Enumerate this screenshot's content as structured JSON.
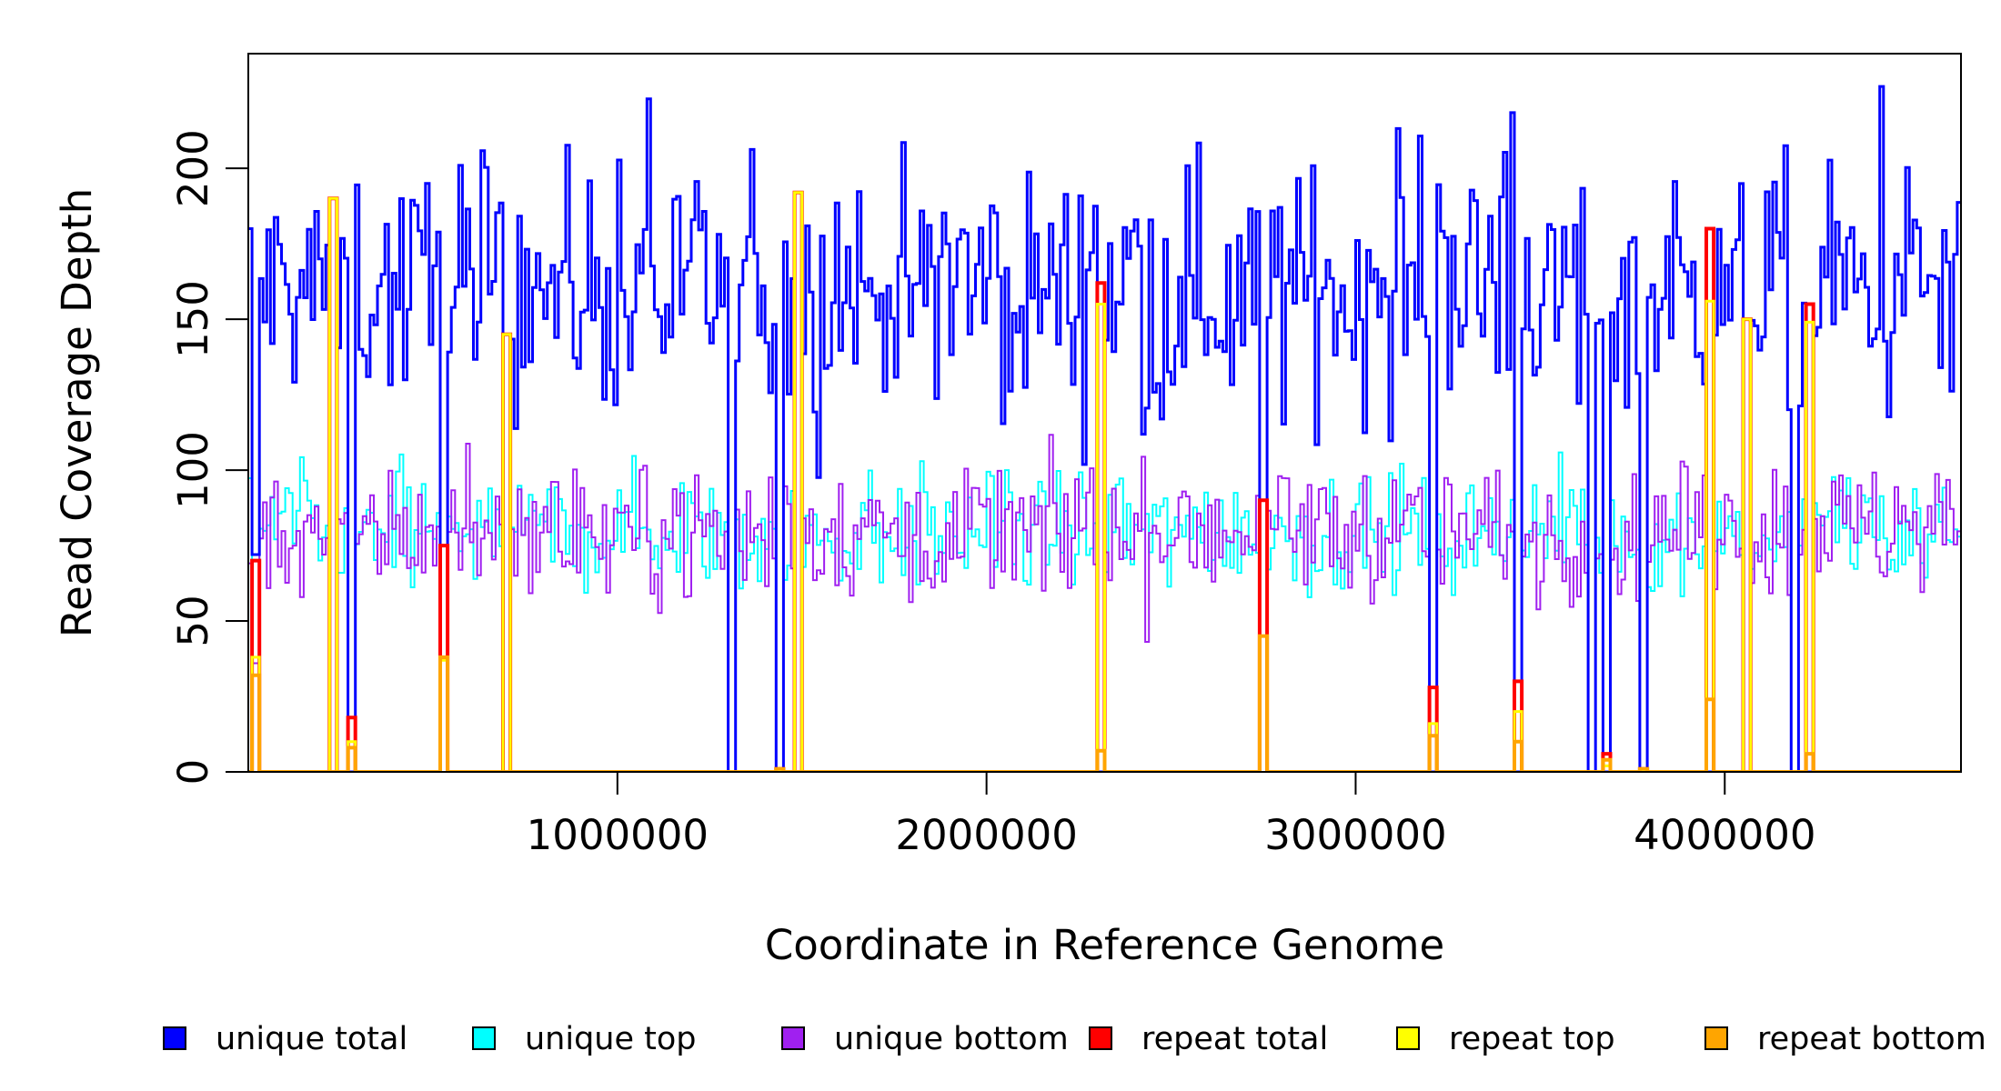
{
  "chart_data": {
    "type": "line",
    "title": "",
    "xlabel": "Coordinate in Reference Genome",
    "ylabel": "Read Coverage Depth",
    "xlim": [
      0,
      4640000
    ],
    "ylim": [
      0,
      238
    ],
    "x_ticks": [
      1000000,
      2000000,
      3000000,
      4000000
    ],
    "x_tick_labels": [
      "1000000",
      "2000000",
      "3000000",
      "4000000"
    ],
    "y_ticks": [
      0,
      50,
      100,
      150,
      200
    ],
    "y_tick_labels": [
      "0",
      "50",
      "100",
      "150",
      "200"
    ],
    "grid": false,
    "legend_position": "bottom",
    "bin_size": 10000,
    "series": [
      {
        "name": "unique total",
        "color": "#0000FF",
        "mean": 160,
        "spread": 20
      },
      {
        "name": "unique top",
        "color": "#00FFFF",
        "mean": 80,
        "spread": 10
      },
      {
        "name": "unique bottom",
        "color": "#A020F0",
        "mean": 80,
        "spread": 11
      },
      {
        "name": "repeat total",
        "color": "#FF0000",
        "mean": 0,
        "spread": 0
      },
      {
        "name": "repeat top",
        "color": "#FFFF00",
        "mean": 0,
        "spread": 0
      },
      {
        "name": "repeat bottom",
        "color": "#FFA500",
        "mean": 0,
        "spread": 0
      }
    ],
    "dips": [
      {
        "x": 10000,
        "unique_total": 72,
        "repeat_total": 70,
        "repeat_bottom": 32
      },
      {
        "x": 220000,
        "unique_total": 0,
        "repeat_total": 190,
        "repeat_bottom": 0
      },
      {
        "x": 265000,
        "unique_total": 0,
        "repeat_total": 18,
        "repeat_bottom": 8
      },
      {
        "x": 520000,
        "unique_total": 75,
        "repeat_total": 75,
        "repeat_bottom": 38
      },
      {
        "x": 685000,
        "unique_total": 0,
        "repeat_total": 145,
        "repeat_bottom": 0
      },
      {
        "x": 1300000,
        "unique_total": 0,
        "repeat_total": 0,
        "repeat_bottom": 0
      },
      {
        "x": 1425000,
        "unique_total": 0,
        "repeat_total": 1,
        "repeat_bottom": 1
      },
      {
        "x": 1475000,
        "unique_total": 0,
        "repeat_total": 192,
        "repeat_bottom": 0
      },
      {
        "x": 2295000,
        "unique_total": 0,
        "repeat_total": 162,
        "repeat_bottom": 7
      },
      {
        "x": 2735000,
        "unique_total": 90,
        "repeat_total": 90,
        "repeat_bottom": 45
      },
      {
        "x": 3195000,
        "unique_total": 0,
        "repeat_total": 28,
        "repeat_bottom": 12
      },
      {
        "x": 3425000,
        "unique_total": 0,
        "repeat_total": 30,
        "repeat_bottom": 10
      },
      {
        "x": 3625000,
        "unique_total": 0,
        "repeat_total": 0,
        "repeat_bottom": 0
      },
      {
        "x": 3665000,
        "unique_total": 0,
        "repeat_total": 6,
        "repeat_bottom": 4
      },
      {
        "x": 3770000,
        "unique_total": 0,
        "repeat_total": 1,
        "repeat_bottom": 1
      },
      {
        "x": 3945000,
        "unique_total": 0,
        "repeat_total": 180,
        "repeat_bottom": 24
      },
      {
        "x": 4045000,
        "unique_total": 0,
        "repeat_total": 150,
        "repeat_bottom": 0
      },
      {
        "x": 4175000,
        "unique_total": 0,
        "repeat_total": 0,
        "repeat_bottom": 0
      },
      {
        "x": 4220000,
        "unique_total": 0,
        "repeat_total": 155,
        "repeat_bottom": 6
      }
    ]
  }
}
